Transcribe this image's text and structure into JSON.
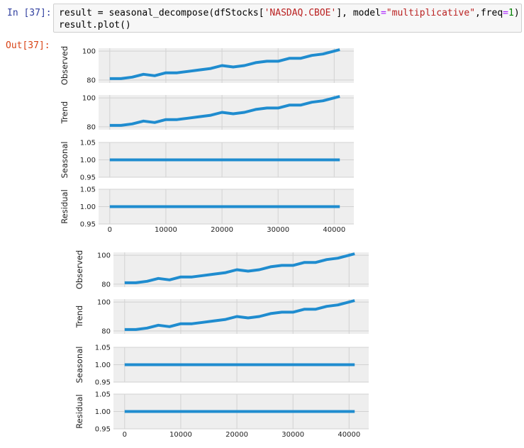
{
  "cell": {
    "in_prompt": "In [37]:",
    "out_prompt": "Out[37]:",
    "code_line1": {
      "p1": "result = seasonal_decompose(dfStocks[",
      "s1": "'NASDAQ.CBOE'",
      "p2": "], model",
      "eq": "=",
      "s2": "\"multiplicative\"",
      "p3": ",freq",
      "eq2": "=",
      "n1": "1",
      "p4": ")"
    },
    "code_line2": "result.plot()"
  },
  "colors": {
    "line": "#1f8ccf",
    "panel_bg": "#eeeeee",
    "grid": "#d2d2d2"
  },
  "chart_data": [
    {
      "type": "line",
      "panels": [
        {
          "ylabel": "Observed",
          "yticks": [
            "100",
            "80"
          ],
          "ylim": [
            78,
            102
          ],
          "x": [
            0,
            2000,
            4000,
            6000,
            8000,
            10000,
            12000,
            14000,
            16000,
            18000,
            20000,
            22000,
            24000,
            26000,
            28000,
            30000,
            32000,
            34000,
            36000,
            38000,
            40000,
            41000
          ],
          "y": [
            81,
            81,
            82,
            84,
            83,
            85,
            85,
            86,
            87,
            88,
            90,
            89,
            90,
            92,
            93,
            93,
            95,
            95,
            97,
            98,
            100,
            101
          ]
        },
        {
          "ylabel": "Trend",
          "yticks": [
            "100",
            "80"
          ],
          "ylim": [
            78,
            102
          ],
          "x": [
            0,
            2000,
            4000,
            6000,
            8000,
            10000,
            12000,
            14000,
            16000,
            18000,
            20000,
            22000,
            24000,
            26000,
            28000,
            30000,
            32000,
            34000,
            36000,
            38000,
            40000,
            41000
          ],
          "y": [
            81,
            81,
            82,
            84,
            83,
            85,
            85,
            86,
            87,
            88,
            90,
            89,
            90,
            92,
            93,
            93,
            95,
            95,
            97,
            98,
            100,
            101
          ]
        },
        {
          "ylabel": "Seasonal",
          "yticks": [
            "1.05",
            "1.00",
            "0.95"
          ],
          "ylim": [
            0.95,
            1.05
          ],
          "x": [
            0,
            41000
          ],
          "y": [
            1.0,
            1.0
          ]
        },
        {
          "ylabel": "Residual",
          "yticks": [
            "1.05",
            "1.00",
            "0.95"
          ],
          "ylim": [
            0.95,
            1.05
          ],
          "x": [
            0,
            41000
          ],
          "y": [
            1.0,
            1.0
          ]
        }
      ],
      "xticks": [
        "0",
        "10000",
        "20000",
        "30000",
        "40000"
      ],
      "xlim": [
        -2000,
        43500
      ]
    },
    {
      "type": "line",
      "panels": [
        {
          "ylabel": "Observed",
          "yticks": [
            "100",
            "80"
          ],
          "ylim": [
            78,
            102
          ],
          "x": [
            0,
            2000,
            4000,
            6000,
            8000,
            10000,
            12000,
            14000,
            16000,
            18000,
            20000,
            22000,
            24000,
            26000,
            28000,
            30000,
            32000,
            34000,
            36000,
            38000,
            40000,
            41000
          ],
          "y": [
            81,
            81,
            82,
            84,
            83,
            85,
            85,
            86,
            87,
            88,
            90,
            89,
            90,
            92,
            93,
            93,
            95,
            95,
            97,
            98,
            100,
            101
          ]
        },
        {
          "ylabel": "Trend",
          "yticks": [
            "100",
            "80"
          ],
          "ylim": [
            78,
            102
          ],
          "x": [
            0,
            2000,
            4000,
            6000,
            8000,
            10000,
            12000,
            14000,
            16000,
            18000,
            20000,
            22000,
            24000,
            26000,
            28000,
            30000,
            32000,
            34000,
            36000,
            38000,
            40000,
            41000
          ],
          "y": [
            81,
            81,
            82,
            84,
            83,
            85,
            85,
            86,
            87,
            88,
            90,
            89,
            90,
            92,
            93,
            93,
            95,
            95,
            97,
            98,
            100,
            101
          ]
        },
        {
          "ylabel": "Seasonal",
          "yticks": [
            "1.05",
            "1.00",
            "0.95"
          ],
          "ylim": [
            0.95,
            1.05
          ],
          "x": [
            0,
            41000
          ],
          "y": [
            1.0,
            1.0
          ]
        },
        {
          "ylabel": "Residual",
          "yticks": [
            "1.05",
            "1.00",
            "0.95"
          ],
          "ylim": [
            0.95,
            1.05
          ],
          "x": [
            0,
            41000
          ],
          "y": [
            1.0,
            1.0
          ]
        }
      ],
      "xticks": [
        "0",
        "10000",
        "20000",
        "30000",
        "40000"
      ],
      "xlim": [
        -2000,
        43500
      ]
    }
  ]
}
